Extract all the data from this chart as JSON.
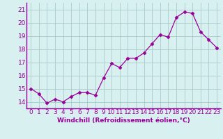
{
  "x": [
    0,
    1,
    2,
    3,
    4,
    5,
    6,
    7,
    8,
    9,
    10,
    11,
    12,
    13,
    14,
    15,
    16,
    17,
    18,
    19,
    20,
    21,
    22,
    23
  ],
  "y": [
    15.0,
    14.6,
    13.9,
    14.2,
    14.0,
    14.4,
    14.7,
    14.7,
    14.5,
    15.8,
    16.9,
    16.6,
    17.3,
    17.3,
    17.7,
    18.4,
    19.1,
    18.9,
    20.4,
    20.8,
    20.7,
    19.3,
    18.7,
    18.1
  ],
  "line_color": "#990099",
  "marker": "D",
  "marker_size": 2.5,
  "bg_color": "#d8f0f0",
  "grid_color": "#aacccc",
  "xlabel": "Windchill (Refroidissement éolien,°C)",
  "xlabel_color": "#990099",
  "xlabel_fontsize": 6.5,
  "tick_color": "#990099",
  "tick_fontsize": 6.5,
  "ylim": [
    13.5,
    21.5
  ],
  "yticks": [
    14,
    15,
    16,
    17,
    18,
    19,
    20,
    21
  ],
  "xticks": [
    0,
    1,
    2,
    3,
    4,
    5,
    6,
    7,
    8,
    9,
    10,
    11,
    12,
    13,
    14,
    15,
    16,
    17,
    18,
    19,
    20,
    21,
    22,
    23
  ],
  "xlim": [
    -0.5,
    23.5
  ]
}
